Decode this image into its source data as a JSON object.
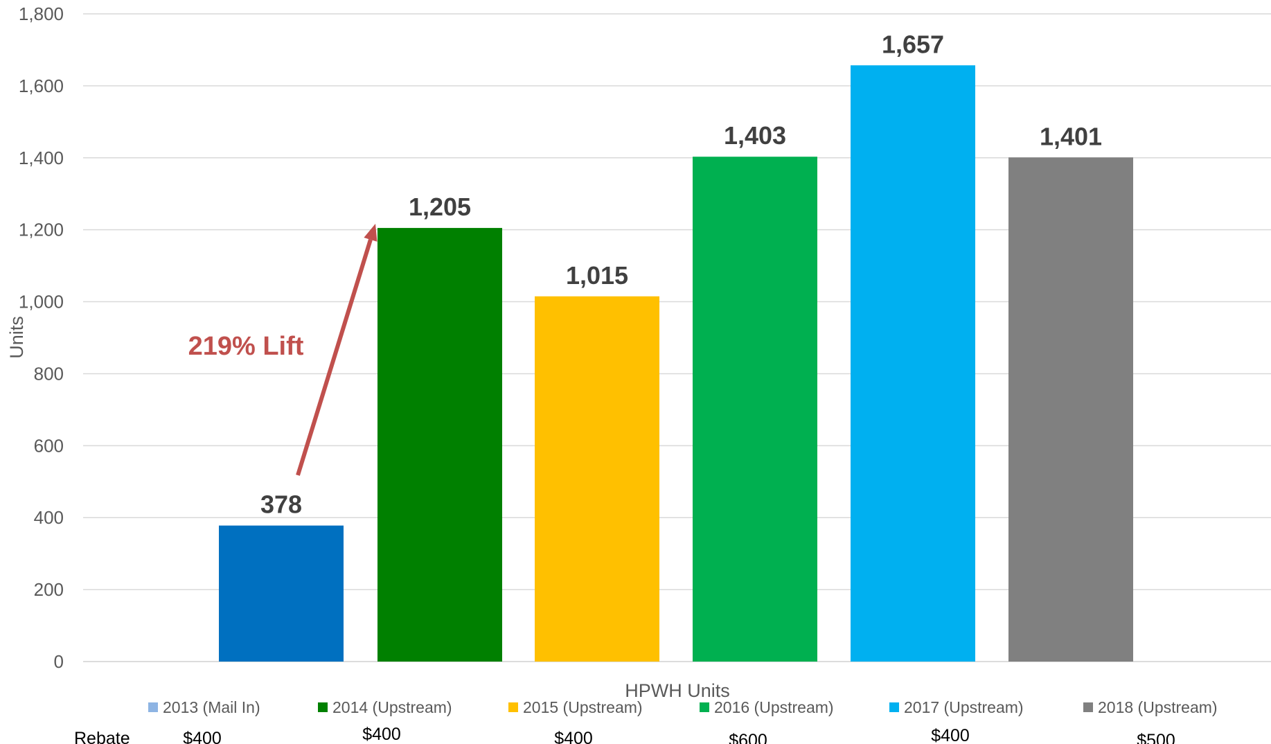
{
  "chart_data": {
    "type": "bar",
    "title": "",
    "xlabel": "HPWH Units",
    "ylabel": "Units",
    "ylim": [
      0,
      1800
    ],
    "yticks": [
      "0",
      "200",
      "400",
      "600",
      "800",
      "1,000",
      "1,200",
      "1,400",
      "1,600",
      "1,800"
    ],
    "grid": true,
    "legend_position": "bottom",
    "categories": [
      "2013 (Mail In)",
      "2014 (Upstream)",
      "2015 (Upstream)",
      "2016 (Upstream)",
      "2017 (Upstream)",
      "2018 (Upstream)"
    ],
    "values": [
      378,
      1205,
      1015,
      1403,
      1657,
      1401
    ],
    "value_labels": [
      "378",
      "1,205",
      "1,015",
      "1,403",
      "1,657",
      "1,401"
    ],
    "colors": [
      "#0070c0",
      "#008000",
      "#ffc000",
      "#00b050",
      "#00b0f0",
      "#808080"
    ],
    "legend_swatch_colors": [
      "#8eb4e3",
      "#008000",
      "#ffc000",
      "#00b050",
      "#00b0f0",
      "#808080"
    ],
    "annotation": {
      "text": "219% Lift",
      "color": "#c0504d",
      "from_category": "2013 (Mail In)",
      "to_category": "2014 (Upstream)"
    },
    "rebate": {
      "label": "Rebate",
      "values": [
        "$400",
        "$400",
        "$400",
        "$600",
        "$400",
        "$500"
      ]
    }
  }
}
